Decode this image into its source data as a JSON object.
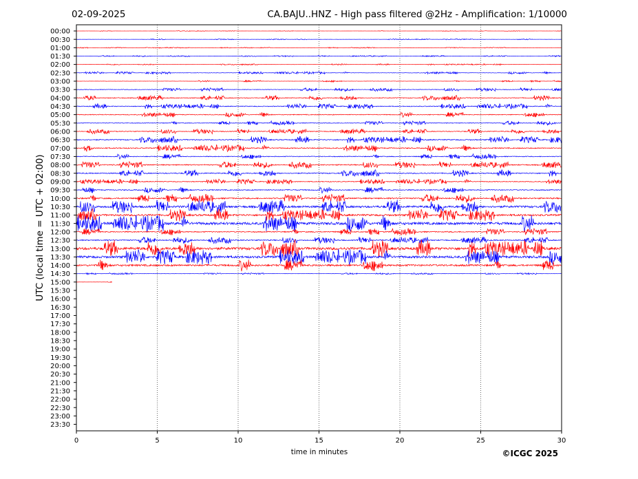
{
  "header": {
    "date": "02-09-2025",
    "title": "CA.BAJU..HNZ - High pass filtered @2Hz - Amplification: 1/10000"
  },
  "footer": {
    "copyright": "©ICGC 2025"
  },
  "colors": {
    "trace_a": "#ff0000",
    "trace_b": "#0000ff",
    "axis": "#000000",
    "grid": "#000000"
  },
  "chart_data": {
    "type": "line",
    "xlabel": "time in minutes",
    "ylabel": "UTC (local time = UTC + 02:00)",
    "xlim": [
      0,
      30
    ],
    "x_ticks": [
      0,
      5,
      10,
      15,
      20,
      25,
      30
    ],
    "grid": "vertical dotted lines at 5-minute ticks",
    "row_labels": [
      "00:00",
      "00:30",
      "01:00",
      "01:30",
      "02:00",
      "02:30",
      "03:00",
      "03:30",
      "04:00",
      "04:30",
      "05:00",
      "05:30",
      "06:00",
      "06:30",
      "07:00",
      "07:30",
      "08:00",
      "08:30",
      "09:00",
      "09:30",
      "10:00",
      "10:30",
      "11:00",
      "11:30",
      "12:00",
      "12:30",
      "13:00",
      "13:30",
      "14:00",
      "14:30",
      "15:00",
      "15:30",
      "16:00",
      "16:30",
      "17:00",
      "17:30",
      "18:00",
      "18:30",
      "19:00",
      "19:30",
      "20:00",
      "20:30",
      "21:00",
      "21:30",
      "22:00",
      "22:30",
      "23:00",
      "23:30"
    ],
    "row_colors": [
      "red",
      "blue",
      "red",
      "blue",
      "red",
      "blue",
      "red",
      "blue",
      "red",
      "blue",
      "red",
      "blue",
      "red",
      "blue",
      "red",
      "blue",
      "red",
      "blue",
      "red",
      "blue",
      "red",
      "blue",
      "red",
      "blue",
      "red",
      "blue",
      "red",
      "blue",
      "red",
      "blue",
      "red"
    ],
    "row_amplitude": [
      0.2,
      0.3,
      0.3,
      0.4,
      0.4,
      0.7,
      0.5,
      1,
      1.5,
      1.5,
      1.5,
      1.2,
      1.5,
      2,
      2,
      1.5,
      2,
      2,
      1.5,
      1.8,
      2.5,
      4,
      3.5,
      5,
      2,
      2,
      5,
      4.5,
      3.5,
      0.5,
      0.3
    ],
    "row_end_minute": [
      30,
      30,
      30,
      30,
      30,
      30,
      30,
      30,
      30,
      30,
      30,
      30,
      30,
      30,
      30,
      30,
      30,
      30,
      30,
      30,
      30,
      30,
      30,
      30,
      30,
      30,
      30,
      30,
      30,
      30,
      2.2
    ]
  }
}
